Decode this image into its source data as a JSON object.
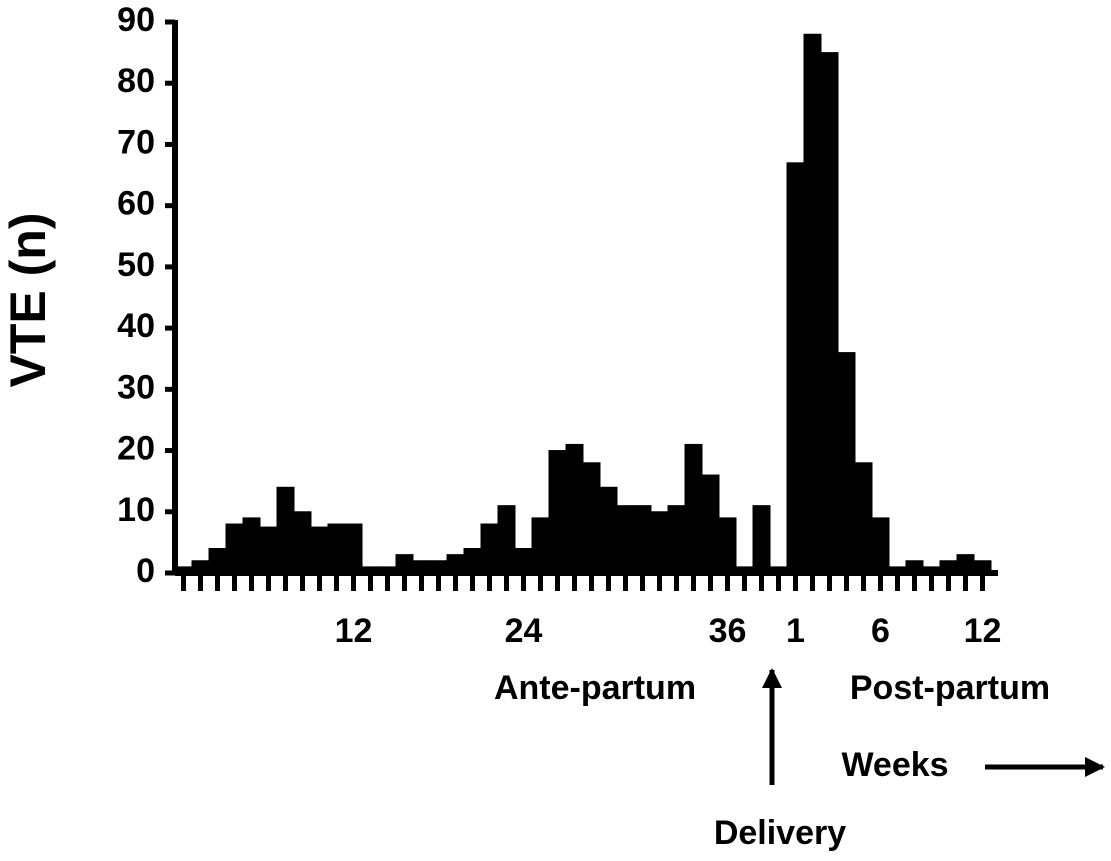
{
  "chart_data": {
    "type": "bar",
    "y_label": "VTE (n)",
    "categories": [
      null,
      null,
      null,
      null,
      null,
      null,
      null,
      null,
      null,
      null,
      "12",
      null,
      null,
      null,
      null,
      null,
      null,
      null,
      null,
      null,
      "24",
      null,
      null,
      null,
      null,
      null,
      null,
      null,
      null,
      null,
      null,
      null,
      "36",
      null,
      null,
      null,
      "1",
      null,
      null,
      null,
      null,
      "6",
      null,
      null,
      null,
      null,
      null,
      "12"
    ],
    "values": [
      1,
      2,
      4,
      8,
      9,
      7.5,
      14,
      10,
      7.5,
      8,
      8,
      1,
      1,
      3,
      2,
      2,
      3,
      4,
      8,
      11,
      4,
      9,
      20,
      21,
      18,
      14,
      11,
      11,
      10,
      11,
      21,
      16,
      9,
      1,
      11,
      1,
      67,
      88,
      85,
      36,
      18,
      9,
      1,
      2,
      1,
      2,
      3,
      2
    ],
    "color": "#000000",
    "ylim": [
      0,
      90
    ],
    "yticks": [
      0,
      10,
      20,
      30,
      40,
      50,
      60,
      70,
      80,
      90
    ],
    "annotations": [
      "Ante-partum",
      "Post-partum",
      "Weeks",
      "Delivery"
    ]
  }
}
